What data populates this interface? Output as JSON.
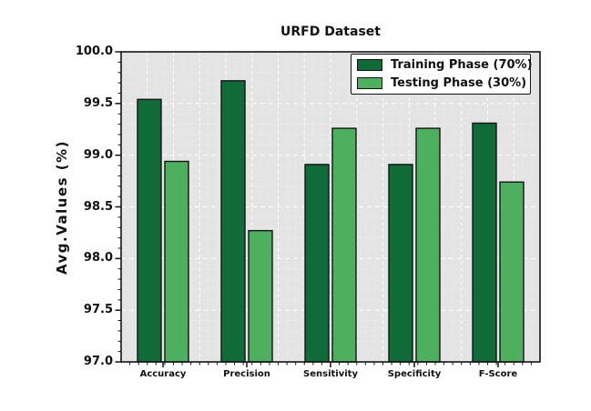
{
  "chart_data": {
    "type": "bar",
    "title": "URFD Dataset",
    "xlabel": "",
    "ylabel": "Avg.Values (%)",
    "categories": [
      "Accuracy",
      "Precision",
      "Sensitivity",
      "Specificity",
      "F-Score"
    ],
    "series": [
      {
        "name": "Training Phase (70%)",
        "color": "#0f6b38",
        "values": [
          99.54,
          99.72,
          98.91,
          98.91,
          99.31
        ]
      },
      {
        "name": "Testing Phase (30%)",
        "color": "#4cb05e",
        "values": [
          98.94,
          98.27,
          99.26,
          99.26,
          98.74
        ]
      }
    ],
    "ylim": [
      97.0,
      100.0
    ],
    "ytick_step": 0.5,
    "ytick_labels": [
      "97.0",
      "97.5",
      "98.0",
      "98.5",
      "99.0",
      "99.5",
      "100.0"
    ],
    "y_minor_step": 0.1,
    "grid": true,
    "legend_position": "upper right",
    "colors": {
      "plot_background": "#e4e4e4",
      "figure_background": "#ffffff",
      "bar_edge": "#141414",
      "grid_major": "#fcfcfc",
      "grid_minor": "#f2f2f2",
      "axis": "#141414",
      "text": "#111111"
    }
  }
}
